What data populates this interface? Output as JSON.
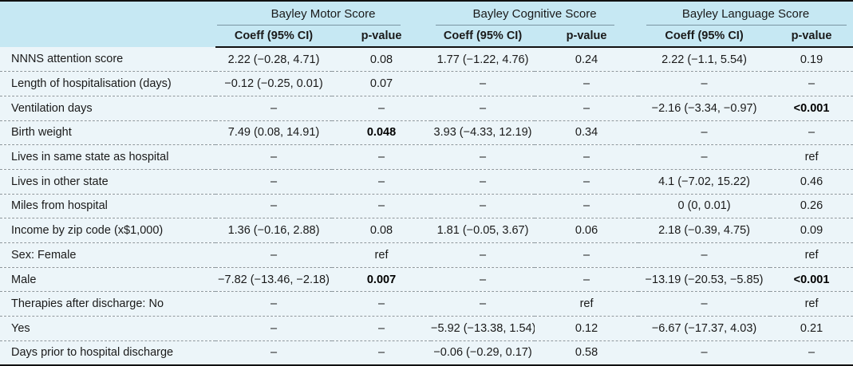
{
  "colors": {
    "header_bg": "#c6e8f3",
    "body_bg": "#ecf5f9",
    "line_color": "#111111",
    "sep_color": "#8e989d",
    "underline_color": "#7a95a1",
    "text_color": "#1a1a1a"
  },
  "table": {
    "groups": [
      {
        "label": "Bayley Motor Score"
      },
      {
        "label": "Bayley Cognitive Score"
      },
      {
        "label": "Bayley Language Score"
      }
    ],
    "coeff_header": "Coeff (95% CI)",
    "pvalue_header": "p-value",
    "empty_cell": "–",
    "rows": [
      {
        "label": "NNNS attention score",
        "cells": [
          "2.22 (−0.28, 4.71)",
          "0.08",
          "1.77 (−1.22, 4.76)",
          "0.24",
          "2.22 (−1.1, 5.54)",
          "0.19"
        ],
        "bold_cells": []
      },
      {
        "label": "Length of hospitalisation (days)",
        "cells": [
          "−0.12 (−0.25, 0.01)",
          "0.07",
          "–",
          "–",
          "–",
          "–"
        ],
        "bold_cells": []
      },
      {
        "label": "Ventilation days",
        "cells": [
          "–",
          "–",
          "–",
          "–",
          "−2.16 (−3.34, −0.97)",
          "<0.001"
        ],
        "bold_cells": [
          5
        ]
      },
      {
        "label": "Birth weight",
        "cells": [
          "7.49 (0.08, 14.91)",
          "0.048",
          "3.93 (−4.33, 12.19)",
          "0.34",
          "–",
          "–"
        ],
        "bold_cells": [
          1
        ]
      },
      {
        "label": "Lives in same state as hospital",
        "cells": [
          "–",
          "–",
          "–",
          "–",
          "–",
          "ref"
        ],
        "bold_cells": []
      },
      {
        "label": "Lives in other state",
        "cells": [
          "–",
          "–",
          "–",
          "–",
          "4.1 (−7.02, 15.22)",
          "0.46"
        ],
        "bold_cells": []
      },
      {
        "label": "Miles from hospital",
        "cells": [
          "–",
          "–",
          "–",
          "–",
          "0 (0, 0.01)",
          "0.26"
        ],
        "bold_cells": []
      },
      {
        "label": "Income by zip code (x$1,000)",
        "cells": [
          "1.36 (−0.16, 2.88)",
          "0.08",
          "1.81 (−0.05, 3.67)",
          "0.06",
          "2.18 (−0.39, 4.75)",
          "0.09"
        ],
        "bold_cells": []
      },
      {
        "label": "Sex: Female",
        "cells": [
          "–",
          "ref",
          "–",
          "–",
          "–",
          "ref"
        ],
        "bold_cells": []
      },
      {
        "label": "Male",
        "cells": [
          "−7.82 (−13.46, −2.18)",
          "0.007",
          "–",
          "–",
          "−13.19 (−20.53, −5.85)",
          "<0.001"
        ],
        "bold_cells": [
          1,
          5
        ]
      },
      {
        "label": "Therapies after discharge: No",
        "cells": [
          "–",
          "–",
          "–",
          "ref",
          "–",
          "ref"
        ],
        "bold_cells": []
      },
      {
        "label": "Yes",
        "cells": [
          "–",
          "–",
          "−5.92 (−13.38, 1.54)",
          "0.12",
          "−6.67 (−17.37, 4.03)",
          "0.21"
        ],
        "bold_cells": []
      },
      {
        "label": "Days prior to hospital discharge",
        "cells": [
          "–",
          "–",
          "−0.06 (−0.29, 0.17)",
          "0.58",
          "–",
          "–"
        ],
        "bold_cells": []
      }
    ]
  }
}
